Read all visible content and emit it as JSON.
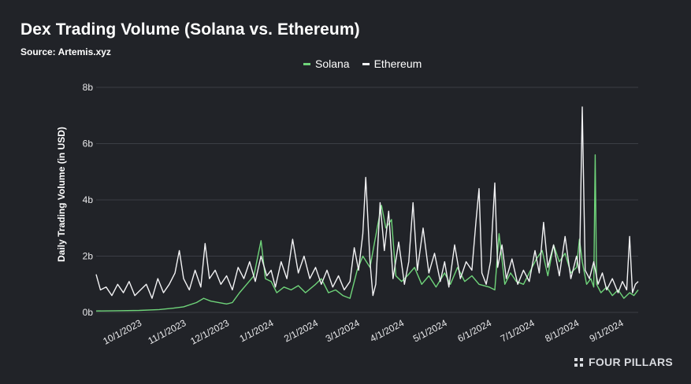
{
  "chart_data": {
    "type": "line",
    "title": "Dex Trading Volume (Solana vs. Ethereum)",
    "subtitle": "Source: Artemis.xyz",
    "ylabel": "Daily Trading Volume (in USD)",
    "xlabel": "",
    "ylim": [
      0,
      8
    ],
    "y_ticks": [
      {
        "value": 0,
        "label": "0b"
      },
      {
        "value": 2,
        "label": "2b"
      },
      {
        "value": 4,
        "label": "4b"
      },
      {
        "value": 6,
        "label": "6b"
      },
      {
        "value": 8,
        "label": "8b"
      }
    ],
    "x_start": "2023-09-01",
    "x_end": "2024-09-13",
    "x_ticks": [
      {
        "date": "2023-10-01",
        "label": "10/1/2023"
      },
      {
        "date": "2023-11-01",
        "label": "11/1/2023"
      },
      {
        "date": "2023-12-01",
        "label": "12/1/2023"
      },
      {
        "date": "2024-01-01",
        "label": "1/1/2024"
      },
      {
        "date": "2024-02-01",
        "label": "2/1/2024"
      },
      {
        "date": "2024-03-01",
        "label": "3/1/2024"
      },
      {
        "date": "2024-04-01",
        "label": "4/1/2024"
      },
      {
        "date": "2024-05-01",
        "label": "5/1/2024"
      },
      {
        "date": "2024-06-01",
        "label": "6/1/2024"
      },
      {
        "date": "2024-07-01",
        "label": "7/1/2024"
      },
      {
        "date": "2024-08-01",
        "label": "8/1/2024"
      },
      {
        "date": "2024-09-01",
        "label": "9/1/2024"
      }
    ],
    "grid": true,
    "legend_position": "top-center",
    "series": [
      {
        "name": "Solana",
        "color": "#6fd47a",
        "points": [
          [
            "2023-09-01",
            0.05
          ],
          [
            "2023-09-15",
            0.06
          ],
          [
            "2023-10-01",
            0.07
          ],
          [
            "2023-10-15",
            0.1
          ],
          [
            "2023-10-25",
            0.15
          ],
          [
            "2023-11-01",
            0.2
          ],
          [
            "2023-11-10",
            0.35
          ],
          [
            "2023-11-15",
            0.5
          ],
          [
            "2023-11-20",
            0.4
          ],
          [
            "2023-12-01",
            0.3
          ],
          [
            "2023-12-05",
            0.35
          ],
          [
            "2023-12-10",
            0.7
          ],
          [
            "2023-12-15",
            1.0
          ],
          [
            "2023-12-20",
            1.3
          ],
          [
            "2023-12-25",
            2.55
          ],
          [
            "2023-12-28",
            1.2
          ],
          [
            "2024-01-01",
            1.1
          ],
          [
            "2024-01-05",
            0.7
          ],
          [
            "2024-01-10",
            0.9
          ],
          [
            "2024-01-15",
            0.8
          ],
          [
            "2024-01-20",
            0.95
          ],
          [
            "2024-01-25",
            0.7
          ],
          [
            "2024-02-01",
            1.0
          ],
          [
            "2024-02-05",
            1.2
          ],
          [
            "2024-02-10",
            0.7
          ],
          [
            "2024-02-15",
            0.8
          ],
          [
            "2024-02-20",
            0.6
          ],
          [
            "2024-02-25",
            0.5
          ],
          [
            "2024-03-01",
            1.5
          ],
          [
            "2024-03-05",
            2.0
          ],
          [
            "2024-03-10",
            1.6
          ],
          [
            "2024-03-15",
            3.0
          ],
          [
            "2024-03-18",
            3.8
          ],
          [
            "2024-03-21",
            3.0
          ],
          [
            "2024-03-25",
            3.3
          ],
          [
            "2024-03-28",
            1.3
          ],
          [
            "2024-04-01",
            1.1
          ],
          [
            "2024-04-05",
            1.3
          ],
          [
            "2024-04-10",
            1.6
          ],
          [
            "2024-04-15",
            1.0
          ],
          [
            "2024-04-20",
            1.3
          ],
          [
            "2024-04-25",
            0.9
          ],
          [
            "2024-05-01",
            1.4
          ],
          [
            "2024-05-05",
            1.0
          ],
          [
            "2024-05-10",
            1.6
          ],
          [
            "2024-05-15",
            1.1
          ],
          [
            "2024-05-20",
            1.3
          ],
          [
            "2024-05-25",
            1.0
          ],
          [
            "2024-06-01",
            0.9
          ],
          [
            "2024-06-05",
            0.8
          ],
          [
            "2024-06-08",
            2.8
          ],
          [
            "2024-06-12",
            1.0
          ],
          [
            "2024-06-16",
            1.4
          ],
          [
            "2024-06-20",
            1.1
          ],
          [
            "2024-06-25",
            1.0
          ],
          [
            "2024-07-01",
            1.6
          ],
          [
            "2024-07-04",
            1.9
          ],
          [
            "2024-07-08",
            2.2
          ],
          [
            "2024-07-12",
            1.3
          ],
          [
            "2024-07-16",
            2.4
          ],
          [
            "2024-07-20",
            1.8
          ],
          [
            "2024-07-24",
            2.1
          ],
          [
            "2024-07-28",
            1.4
          ],
          [
            "2024-08-01",
            1.6
          ],
          [
            "2024-08-03",
            2.6
          ],
          [
            "2024-08-05",
            1.8
          ],
          [
            "2024-08-08",
            1.0
          ],
          [
            "2024-08-11",
            1.2
          ],
          [
            "2024-08-13",
            0.9
          ],
          [
            "2024-08-14",
            5.6
          ],
          [
            "2024-08-15",
            1.0
          ],
          [
            "2024-08-18",
            0.7
          ],
          [
            "2024-08-22",
            0.9
          ],
          [
            "2024-08-26",
            0.6
          ],
          [
            "2024-08-30",
            0.8
          ],
          [
            "2024-09-03",
            0.5
          ],
          [
            "2024-09-07",
            0.7
          ],
          [
            "2024-09-10",
            0.6
          ],
          [
            "2024-09-13",
            0.8
          ]
        ]
      },
      {
        "name": "Ethereum",
        "color": "#f2f2f4",
        "points": [
          [
            "2023-09-01",
            1.35
          ],
          [
            "2023-09-04",
            0.8
          ],
          [
            "2023-09-08",
            0.9
          ],
          [
            "2023-09-12",
            0.6
          ],
          [
            "2023-09-16",
            1.0
          ],
          [
            "2023-09-20",
            0.7
          ],
          [
            "2023-09-24",
            1.1
          ],
          [
            "2023-09-28",
            0.6
          ],
          [
            "2023-10-02",
            0.8
          ],
          [
            "2023-10-06",
            1.0
          ],
          [
            "2023-10-10",
            0.5
          ],
          [
            "2023-10-14",
            1.2
          ],
          [
            "2023-10-18",
            0.7
          ],
          [
            "2023-10-22",
            1.0
          ],
          [
            "2023-10-26",
            1.4
          ],
          [
            "2023-10-29",
            2.2
          ],
          [
            "2023-11-01",
            1.2
          ],
          [
            "2023-11-05",
            0.8
          ],
          [
            "2023-11-09",
            1.5
          ],
          [
            "2023-11-13",
            0.9
          ],
          [
            "2023-11-16",
            2.45
          ],
          [
            "2023-11-19",
            1.2
          ],
          [
            "2023-11-23",
            1.5
          ],
          [
            "2023-11-27",
            1.0
          ],
          [
            "2023-12-01",
            1.3
          ],
          [
            "2023-12-05",
            0.8
          ],
          [
            "2023-12-09",
            1.6
          ],
          [
            "2023-12-13",
            1.2
          ],
          [
            "2023-12-17",
            1.8
          ],
          [
            "2023-12-21",
            1.1
          ],
          [
            "2023-12-25",
            2.0
          ],
          [
            "2023-12-29",
            1.3
          ],
          [
            "2024-01-01",
            1.5
          ],
          [
            "2024-01-04",
            0.9
          ],
          [
            "2024-01-08",
            1.8
          ],
          [
            "2024-01-12",
            1.2
          ],
          [
            "2024-01-16",
            2.6
          ],
          [
            "2024-01-20",
            1.4
          ],
          [
            "2024-01-24",
            2.0
          ],
          [
            "2024-01-28",
            1.2
          ],
          [
            "2024-02-01",
            1.6
          ],
          [
            "2024-02-05",
            1.0
          ],
          [
            "2024-02-09",
            1.5
          ],
          [
            "2024-02-13",
            0.9
          ],
          [
            "2024-02-17",
            1.3
          ],
          [
            "2024-02-21",
            0.8
          ],
          [
            "2024-02-25",
            1.1
          ],
          [
            "2024-02-28",
            2.3
          ],
          [
            "2024-03-02",
            1.5
          ],
          [
            "2024-03-05",
            2.8
          ],
          [
            "2024-03-07",
            4.8
          ],
          [
            "2024-03-10",
            1.8
          ],
          [
            "2024-03-12",
            0.6
          ],
          [
            "2024-03-14",
            1.0
          ],
          [
            "2024-03-17",
            3.9
          ],
          [
            "2024-03-20",
            2.2
          ],
          [
            "2024-03-23",
            3.6
          ],
          [
            "2024-03-26",
            1.2
          ],
          [
            "2024-03-30",
            2.5
          ],
          [
            "2024-04-03",
            1.0
          ],
          [
            "2024-04-06",
            1.8
          ],
          [
            "2024-04-09",
            3.9
          ],
          [
            "2024-04-12",
            1.5
          ],
          [
            "2024-04-16",
            3.0
          ],
          [
            "2024-04-20",
            1.4
          ],
          [
            "2024-04-24",
            2.1
          ],
          [
            "2024-04-28",
            1.1
          ],
          [
            "2024-05-01",
            1.8
          ],
          [
            "2024-05-04",
            0.9
          ],
          [
            "2024-05-08",
            2.4
          ],
          [
            "2024-05-12",
            1.2
          ],
          [
            "2024-05-16",
            1.8
          ],
          [
            "2024-05-20",
            1.5
          ],
          [
            "2024-05-23",
            3.3
          ],
          [
            "2024-05-25",
            4.4
          ],
          [
            "2024-05-27",
            1.4
          ],
          [
            "2024-05-30",
            1.0
          ],
          [
            "2024-06-02",
            1.8
          ],
          [
            "2024-06-05",
            4.6
          ],
          [
            "2024-06-07",
            1.6
          ],
          [
            "2024-06-10",
            2.4
          ],
          [
            "2024-06-13",
            1.2
          ],
          [
            "2024-06-17",
            1.9
          ],
          [
            "2024-06-21",
            1.0
          ],
          [
            "2024-06-25",
            1.5
          ],
          [
            "2024-06-29",
            1.1
          ],
          [
            "2024-07-03",
            2.2
          ],
          [
            "2024-07-06",
            1.4
          ],
          [
            "2024-07-09",
            3.2
          ],
          [
            "2024-07-12",
            1.6
          ],
          [
            "2024-07-16",
            2.4
          ],
          [
            "2024-07-20",
            1.3
          ],
          [
            "2024-07-24",
            2.7
          ],
          [
            "2024-07-28",
            1.2
          ],
          [
            "2024-08-01",
            2.0
          ],
          [
            "2024-08-03",
            1.4
          ],
          [
            "2024-08-05",
            7.3
          ],
          [
            "2024-08-07",
            1.5
          ],
          [
            "2024-08-10",
            1.2
          ],
          [
            "2024-08-13",
            1.8
          ],
          [
            "2024-08-16",
            1.0
          ],
          [
            "2024-08-19",
            1.4
          ],
          [
            "2024-08-22",
            0.8
          ],
          [
            "2024-08-26",
            1.2
          ],
          [
            "2024-08-30",
            0.7
          ],
          [
            "2024-09-02",
            1.1
          ],
          [
            "2024-09-05",
            0.8
          ],
          [
            "2024-09-07",
            2.7
          ],
          [
            "2024-09-09",
            0.7
          ],
          [
            "2024-09-11",
            1.0
          ],
          [
            "2024-09-13",
            1.1
          ]
        ]
      }
    ]
  },
  "branding": {
    "text": "FOUR PILLARS"
  }
}
